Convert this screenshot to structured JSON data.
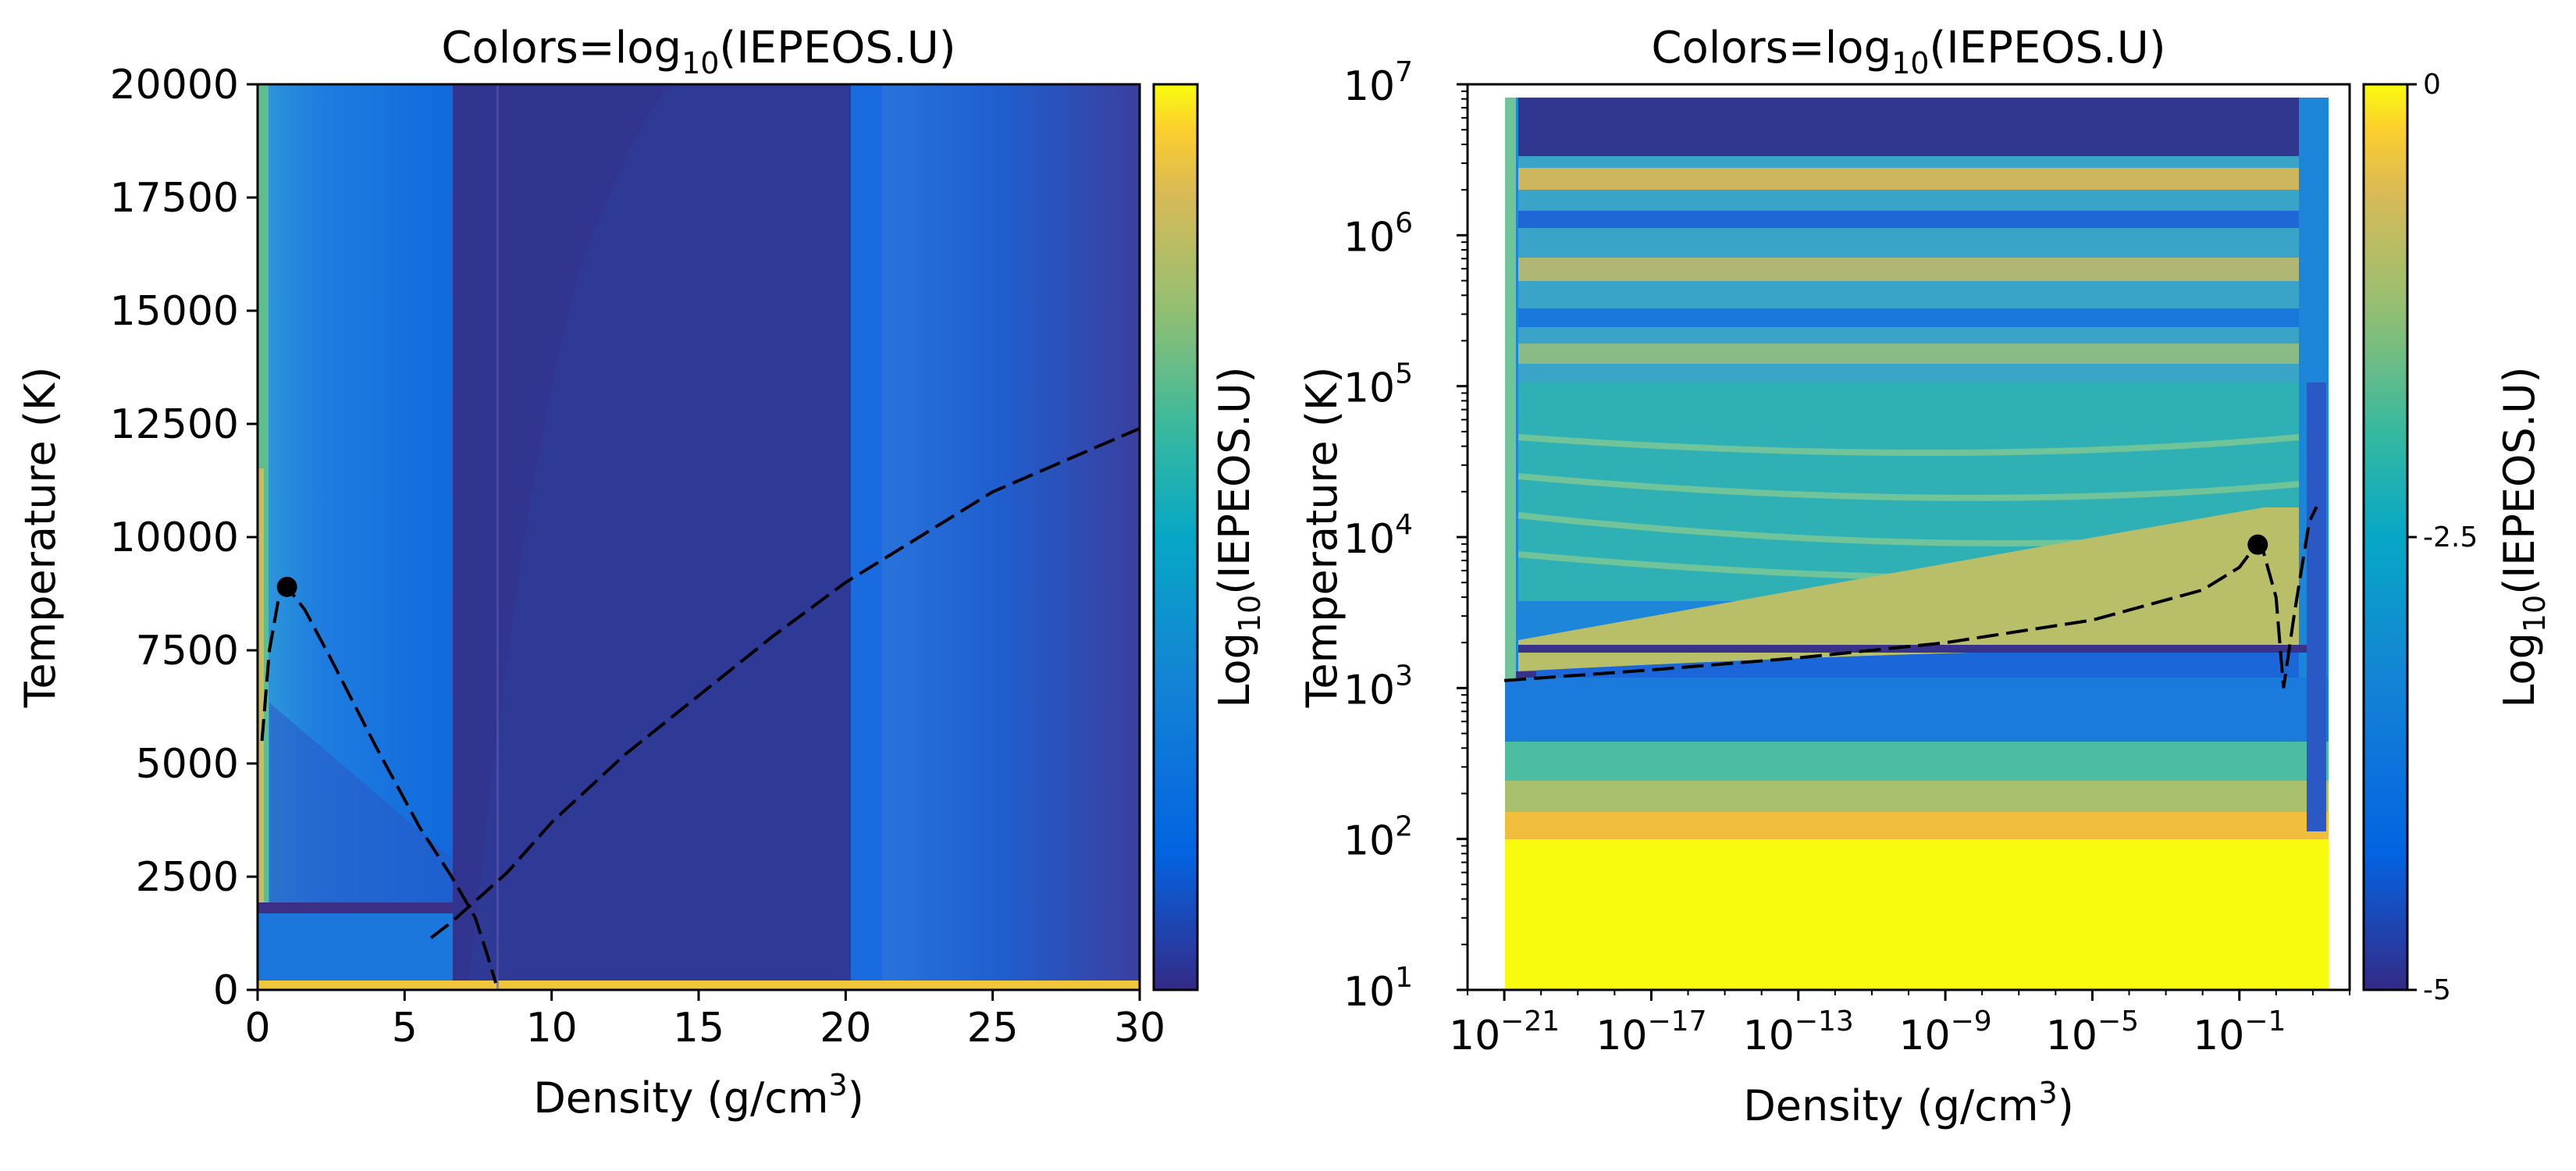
{
  "chart_data": [
    {
      "type": "heatmap",
      "title": "Colors=log",
      "title_sub": "10",
      "title_tail": "(IEPEOS.U)",
      "xlabel": "Density (g/cm",
      "xlabel_sup": "3",
      "xlabel_tail": ")",
      "ylabel": "Temperature (K)",
      "xlim": [
        0,
        30
      ],
      "ylim": [
        0,
        20000
      ],
      "x_ticks": [
        0,
        5,
        10,
        15,
        20,
        25,
        30
      ],
      "y_ticks": [
        0,
        2500,
        5000,
        7500,
        10000,
        12500,
        15000,
        17500,
        20000
      ],
      "colorbar": {
        "label": "Log",
        "label_sub": "10",
        "label_tail": "(IEPEOS.U)",
        "range": [
          -5,
          0
        ]
      },
      "curves": [
        {
          "style": "dashed",
          "points": [
            [
              0.15,
              5500
            ],
            [
              0.4,
              7500
            ],
            [
              0.7,
              8600
            ],
            [
              1.0,
              8900
            ],
            [
              1.6,
              8400
            ],
            [
              2.5,
              7300
            ],
            [
              4,
              5400
            ],
            [
              5.5,
              3600
            ],
            [
              6.6,
              2500
            ],
            [
              7.4,
              1600
            ],
            [
              7.8,
              800
            ],
            [
              8.1,
              150
            ]
          ]
        },
        {
          "style": "dashed",
          "points": [
            [
              5.9,
              1150
            ],
            [
              6.6,
              1500
            ],
            [
              7.3,
              1900
            ],
            [
              8.5,
              2600
            ],
            [
              10,
              3700
            ],
            [
              12.5,
              5200
            ],
            [
              15,
              6500
            ],
            [
              17.5,
              7800
            ],
            [
              20,
              9000
            ],
            [
              22.5,
              10000
            ],
            [
              25,
              11000
            ],
            [
              27.5,
              11700
            ],
            [
              30,
              12400
            ]
          ]
        }
      ],
      "marker": [
        1.0,
        8900
      ]
    },
    {
      "type": "heatmap",
      "title": "Colors=log",
      "title_sub": "10",
      "title_tail": "(IEPEOS.U)",
      "xlabel": "Density (g/cm",
      "xlabel_sup": "3",
      "xlabel_tail": ")",
      "ylabel": "Temperature (K)",
      "xscale": "log",
      "yscale": "log",
      "xlim_exp": [
        -22,
        2
      ],
      "ylim_exp": [
        1,
        7
      ],
      "x_tick_base": "10",
      "x_tick_exps": [
        "−21",
        "−17",
        "−13",
        "−9",
        "−5",
        "−1"
      ],
      "x_tick_values": [
        -21,
        -17,
        -13,
        -9,
        -5,
        -1
      ],
      "y_tick_base": "10",
      "y_tick_exps": [
        "1",
        "2",
        "3",
        "4",
        "5",
        "6",
        "7"
      ],
      "y_tick_values": [
        1,
        2,
        3,
        4,
        5,
        6,
        7
      ],
      "colorbar": {
        "label": "Log",
        "label_sub": "10",
        "label_tail": "(IEPEOS.U)",
        "ticks": [
          "0",
          "-2.5",
          "-5"
        ],
        "tick_values": [
          0,
          -2.5,
          -5
        ]
      },
      "curves": [
        {
          "style": "dashed",
          "points": [
            [
              -21,
              3.05
            ],
            [
              -17,
              3.12
            ],
            [
              -13,
              3.2
            ],
            [
              -9,
              3.3
            ],
            [
              -5,
              3.45
            ],
            [
              -2,
              3.65
            ],
            [
              -1,
              3.8
            ],
            [
              -0.6,
              3.93
            ],
            [
              -0.4,
              3.95
            ],
            [
              0.0,
              3.6
            ],
            [
              0.2,
              3.0
            ],
            [
              0.5,
              3.5
            ],
            [
              0.9,
              4.1
            ],
            [
              1.1,
              4.2
            ]
          ]
        }
      ],
      "marker": [
        -0.5,
        3.95
      ]
    }
  ]
}
